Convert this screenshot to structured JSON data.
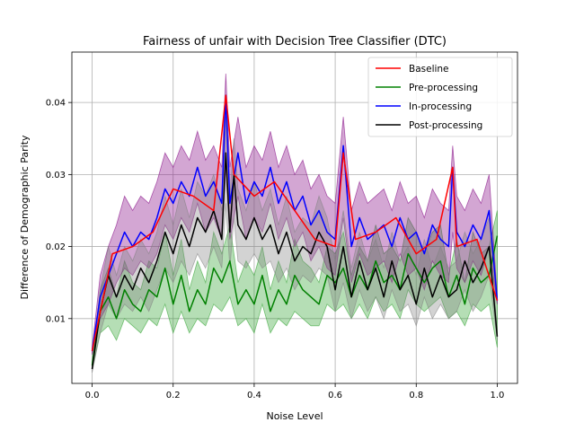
{
  "chart_data": {
    "type": "line",
    "title": "Fairness of unfair with Decision Tree Classifier (DTC)",
    "xlabel": "Noise Level",
    "ylabel": "Difference of Demographic Parity",
    "xlim": [
      -0.05,
      1.05
    ],
    "ylim": [
      0.001,
      0.047
    ],
    "xticks": [
      0.0,
      0.2,
      0.4,
      0.6,
      0.8,
      1.0
    ],
    "xtick_labels": [
      "0.0",
      "0.2",
      "0.4",
      "0.6",
      "0.8",
      "1.0"
    ],
    "yticks": [
      0.01,
      0.02,
      0.03,
      0.04
    ],
    "ytick_labels": [
      "0.01",
      "0.02",
      "0.03",
      "0.04"
    ],
    "grid": true,
    "legend_position": "top-right",
    "series": [
      {
        "name": "Baseline",
        "color": "#ff0000",
        "x": [
          0.0,
          0.05,
          0.1,
          0.15,
          0.2,
          0.25,
          0.3,
          0.33,
          0.35,
          0.4,
          0.45,
          0.5,
          0.55,
          0.6,
          0.62,
          0.65,
          0.7,
          0.75,
          0.8,
          0.85,
          0.89,
          0.9,
          0.95,
          1.0
        ],
        "y": [
          0.0055,
          0.019,
          0.02,
          0.022,
          0.028,
          0.027,
          0.025,
          0.041,
          0.03,
          0.027,
          0.029,
          0.025,
          0.021,
          0.02,
          0.033,
          0.021,
          0.022,
          0.024,
          0.019,
          0.021,
          0.031,
          0.02,
          0.021,
          0.0125
        ]
      },
      {
        "name": "Pre-processing",
        "color": "#008000",
        "band_color": "#2ca02c",
        "x": [
          0.0,
          0.02,
          0.04,
          0.06,
          0.08,
          0.1,
          0.12,
          0.14,
          0.16,
          0.18,
          0.2,
          0.22,
          0.24,
          0.26,
          0.28,
          0.3,
          0.32,
          0.34,
          0.36,
          0.38,
          0.4,
          0.42,
          0.44,
          0.46,
          0.48,
          0.5,
          0.52,
          0.54,
          0.56,
          0.58,
          0.6,
          0.62,
          0.64,
          0.66,
          0.68,
          0.7,
          0.72,
          0.74,
          0.76,
          0.78,
          0.8,
          0.82,
          0.84,
          0.86,
          0.88,
          0.9,
          0.92,
          0.94,
          0.96,
          0.98,
          1.0
        ],
        "y": [
          0.0035,
          0.011,
          0.013,
          0.01,
          0.014,
          0.012,
          0.011,
          0.014,
          0.013,
          0.017,
          0.012,
          0.016,
          0.011,
          0.014,
          0.012,
          0.017,
          0.015,
          0.018,
          0.012,
          0.014,
          0.012,
          0.016,
          0.011,
          0.014,
          0.012,
          0.016,
          0.014,
          0.013,
          0.012,
          0.016,
          0.015,
          0.017,
          0.013,
          0.016,
          0.014,
          0.018,
          0.015,
          0.016,
          0.014,
          0.019,
          0.017,
          0.015,
          0.017,
          0.018,
          0.013,
          0.016,
          0.012,
          0.017,
          0.015,
          0.016,
          0.0215
        ],
        "lower": [
          0.003,
          0.008,
          0.009,
          0.007,
          0.01,
          0.009,
          0.008,
          0.01,
          0.009,
          0.012,
          0.008,
          0.011,
          0.008,
          0.01,
          0.009,
          0.012,
          0.011,
          0.013,
          0.009,
          0.01,
          0.008,
          0.012,
          0.008,
          0.01,
          0.009,
          0.011,
          0.01,
          0.009,
          0.009,
          0.012,
          0.011,
          0.012,
          0.01,
          0.012,
          0.01,
          0.013,
          0.011,
          0.012,
          0.01,
          0.014,
          0.012,
          0.011,
          0.012,
          0.013,
          0.01,
          0.011,
          0.009,
          0.012,
          0.011,
          0.012,
          0.006
        ],
        "upper": [
          0.004,
          0.014,
          0.017,
          0.013,
          0.018,
          0.015,
          0.014,
          0.018,
          0.017,
          0.022,
          0.016,
          0.021,
          0.014,
          0.018,
          0.015,
          0.022,
          0.019,
          0.023,
          0.015,
          0.018,
          0.016,
          0.02,
          0.014,
          0.018,
          0.015,
          0.021,
          0.018,
          0.017,
          0.015,
          0.02,
          0.019,
          0.022,
          0.016,
          0.02,
          0.018,
          0.023,
          0.019,
          0.02,
          0.018,
          0.024,
          0.022,
          0.019,
          0.022,
          0.023,
          0.016,
          0.021,
          0.015,
          0.022,
          0.019,
          0.02,
          0.025
        ]
      },
      {
        "name": "In-processing",
        "color": "#0000ff",
        "band_color": "#800080",
        "x": [
          0.0,
          0.02,
          0.04,
          0.06,
          0.08,
          0.1,
          0.12,
          0.14,
          0.16,
          0.18,
          0.2,
          0.22,
          0.24,
          0.26,
          0.28,
          0.3,
          0.32,
          0.33,
          0.34,
          0.36,
          0.38,
          0.4,
          0.42,
          0.44,
          0.46,
          0.48,
          0.5,
          0.52,
          0.54,
          0.56,
          0.58,
          0.6,
          0.62,
          0.64,
          0.66,
          0.68,
          0.7,
          0.72,
          0.74,
          0.76,
          0.78,
          0.8,
          0.82,
          0.84,
          0.86,
          0.88,
          0.89,
          0.9,
          0.92,
          0.94,
          0.96,
          0.98,
          1.0
        ],
        "y": [
          0.0055,
          0.013,
          0.016,
          0.019,
          0.022,
          0.02,
          0.022,
          0.021,
          0.024,
          0.028,
          0.026,
          0.029,
          0.027,
          0.031,
          0.027,
          0.029,
          0.026,
          0.041,
          0.026,
          0.033,
          0.026,
          0.029,
          0.027,
          0.031,
          0.026,
          0.029,
          0.025,
          0.027,
          0.023,
          0.025,
          0.022,
          0.021,
          0.034,
          0.02,
          0.024,
          0.021,
          0.022,
          0.023,
          0.02,
          0.024,
          0.021,
          0.022,
          0.019,
          0.023,
          0.021,
          0.02,
          0.031,
          0.022,
          0.02,
          0.023,
          0.021,
          0.025,
          0.0125
        ],
        "lower": [
          0.005,
          0.01,
          0.012,
          0.015,
          0.017,
          0.016,
          0.018,
          0.017,
          0.019,
          0.023,
          0.021,
          0.024,
          0.022,
          0.026,
          0.022,
          0.024,
          0.021,
          0.031,
          0.021,
          0.027,
          0.021,
          0.024,
          0.022,
          0.026,
          0.021,
          0.024,
          0.02,
          0.022,
          0.018,
          0.02,
          0.017,
          0.016,
          0.024,
          0.015,
          0.019,
          0.016,
          0.017,
          0.018,
          0.015,
          0.019,
          0.016,
          0.017,
          0.014,
          0.018,
          0.016,
          0.015,
          0.022,
          0.017,
          0.015,
          0.018,
          0.016,
          0.02,
          0.012
        ],
        "upper": [
          0.006,
          0.016,
          0.02,
          0.023,
          0.027,
          0.025,
          0.027,
          0.026,
          0.029,
          0.033,
          0.031,
          0.034,
          0.032,
          0.036,
          0.032,
          0.034,
          0.031,
          0.044,
          0.031,
          0.038,
          0.031,
          0.034,
          0.032,
          0.036,
          0.031,
          0.034,
          0.03,
          0.032,
          0.028,
          0.03,
          0.027,
          0.026,
          0.038,
          0.025,
          0.029,
          0.026,
          0.027,
          0.028,
          0.025,
          0.029,
          0.026,
          0.027,
          0.024,
          0.028,
          0.026,
          0.025,
          0.034,
          0.027,
          0.025,
          0.028,
          0.026,
          0.03,
          0.013
        ]
      },
      {
        "name": "Post-processing",
        "color": "#000000",
        "band_color": "#808080",
        "x": [
          0.0,
          0.02,
          0.04,
          0.06,
          0.08,
          0.1,
          0.12,
          0.14,
          0.16,
          0.18,
          0.2,
          0.22,
          0.24,
          0.26,
          0.28,
          0.3,
          0.32,
          0.33,
          0.34,
          0.35,
          0.36,
          0.38,
          0.4,
          0.42,
          0.44,
          0.46,
          0.48,
          0.5,
          0.52,
          0.54,
          0.56,
          0.58,
          0.6,
          0.62,
          0.64,
          0.66,
          0.68,
          0.7,
          0.72,
          0.74,
          0.76,
          0.78,
          0.8,
          0.82,
          0.84,
          0.86,
          0.88,
          0.9,
          0.92,
          0.94,
          0.96,
          0.98,
          1.0
        ],
        "y": [
          0.003,
          0.011,
          0.016,
          0.013,
          0.016,
          0.014,
          0.017,
          0.015,
          0.018,
          0.022,
          0.019,
          0.023,
          0.02,
          0.024,
          0.022,
          0.025,
          0.021,
          0.033,
          0.022,
          0.03,
          0.023,
          0.021,
          0.024,
          0.021,
          0.023,
          0.019,
          0.022,
          0.018,
          0.02,
          0.019,
          0.022,
          0.02,
          0.014,
          0.02,
          0.013,
          0.018,
          0.014,
          0.017,
          0.013,
          0.018,
          0.014,
          0.016,
          0.012,
          0.017,
          0.013,
          0.016,
          0.013,
          0.014,
          0.018,
          0.015,
          0.017,
          0.02,
          0.0075
        ],
        "lower": [
          0.0025,
          0.008,
          0.012,
          0.01,
          0.012,
          0.011,
          0.013,
          0.011,
          0.014,
          0.017,
          0.015,
          0.018,
          0.016,
          0.019,
          0.017,
          0.02,
          0.017,
          0.026,
          0.017,
          0.024,
          0.018,
          0.017,
          0.019,
          0.017,
          0.018,
          0.015,
          0.017,
          0.014,
          0.016,
          0.015,
          0.017,
          0.016,
          0.011,
          0.015,
          0.01,
          0.014,
          0.011,
          0.013,
          0.01,
          0.014,
          0.011,
          0.012,
          0.009,
          0.013,
          0.01,
          0.012,
          0.01,
          0.011,
          0.014,
          0.011,
          0.013,
          0.016,
          0.007
        ],
        "upper": [
          0.0035,
          0.014,
          0.02,
          0.016,
          0.02,
          0.018,
          0.021,
          0.019,
          0.022,
          0.027,
          0.023,
          0.028,
          0.024,
          0.029,
          0.027,
          0.03,
          0.025,
          0.038,
          0.027,
          0.035,
          0.028,
          0.025,
          0.029,
          0.025,
          0.028,
          0.023,
          0.027,
          0.022,
          0.024,
          0.023,
          0.027,
          0.024,
          0.018,
          0.025,
          0.017,
          0.022,
          0.018,
          0.021,
          0.017,
          0.022,
          0.018,
          0.02,
          0.016,
          0.021,
          0.017,
          0.02,
          0.017,
          0.018,
          0.022,
          0.019,
          0.021,
          0.024,
          0.008
        ]
      }
    ]
  }
}
